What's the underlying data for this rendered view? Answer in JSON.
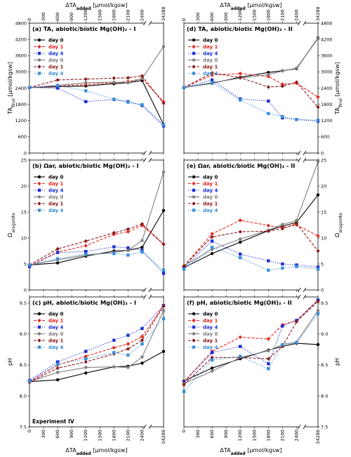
{
  "figure_label": "Experiment IV",
  "x_label": {
    "main": "ΔTA",
    "sub": "added",
    "unit": " [μmol/kgsw]"
  },
  "x_ticks": [
    "0",
    "300",
    "600",
    "900",
    "1200",
    "1500",
    "1800",
    "2100",
    "2400",
    "34288"
  ],
  "colors": {
    "black": "#000000",
    "red": "#e8251e",
    "blue": "#1c2fd6",
    "gray": "#7f7f7f",
    "darkred": "#8b1a1a",
    "lightblue": "#3b8ed8"
  },
  "legend": [
    "day 0",
    "day 1",
    "day 4",
    "day 0",
    "day 1",
    "day 4"
  ],
  "chart_data": [
    {
      "type": "line",
      "panel": "a",
      "title": "(a) TA, abiotic/biotic Mg(OH)₂ - I",
      "ylabel": "TA_final [μmol/kgsw]",
      "ylim": [
        0,
        4800
      ],
      "yticks": [
        0,
        600,
        1200,
        1800,
        2400,
        3000,
        3600,
        4200,
        4800
      ],
      "x": [
        0,
        600,
        1200,
        1800,
        2100,
        2400,
        34288
      ],
      "series": [
        {
          "name": "day 0",
          "values": [
            2420,
            2450,
            2480,
            2560,
            2600,
            2680,
            1050
          ]
        },
        {
          "name": "day 1",
          "values": [
            2420,
            2480,
            2530,
            2600,
            2640,
            2750,
            1900
          ]
        },
        {
          "name": "day 4",
          "values": [
            2420,
            2400,
            1900,
            1980,
            1900,
            1760,
            1000
          ]
        },
        {
          "name": "day 0",
          "values": [
            2420,
            2500,
            2600,
            2620,
            2600,
            2750,
            3940
          ]
        },
        {
          "name": "day 1",
          "values": [
            2420,
            2700,
            2730,
            2770,
            2780,
            2850,
            1840
          ]
        },
        {
          "name": "day 4",
          "values": [
            2420,
            2500,
            2300,
            1990,
            1880,
            1790,
            1040
          ]
        }
      ]
    },
    {
      "type": "line",
      "panel": "d",
      "title": "(d) TA, abiotic/biotic Mg(OH)₂ - II",
      "ylabel": "TA_final [μmol/kgsw]",
      "ylim": [
        0,
        4800
      ],
      "yticks": [
        0,
        600,
        1200,
        1800,
        2400,
        3000,
        3600,
        4200,
        4800
      ],
      "x": [
        0,
        600,
        1200,
        1800,
        2100,
        2400,
        34288
      ],
      "series": [
        {
          "name": "day 0",
          "values": [
            2420,
            2580,
            2800,
            2980,
            3040,
            3120,
            4250
          ]
        },
        {
          "name": "day 1",
          "values": [
            2420,
            2880,
            2940,
            2830,
            2540,
            2580,
            2070
          ]
        },
        {
          "name": "day 4",
          "values": [
            2420,
            2700,
            2000,
            1920,
            1300,
            1240,
            1180
          ]
        },
        {
          "name": "day 0",
          "values": [
            2420,
            2600,
            2770,
            2900,
            3030,
            3140,
            4230
          ]
        },
        {
          "name": "day 1",
          "values": [
            2420,
            2960,
            2790,
            2440,
            2470,
            2620,
            1700
          ]
        },
        {
          "name": "day 4",
          "values": [
            2420,
            2600,
            1960,
            1460,
            1350,
            1240,
            1210
          ]
        }
      ]
    },
    {
      "type": "line",
      "panel": "b",
      "title": "(b) Ω_ar, abiotic/biotic Mg(OH)₂ - I",
      "ylabel": "Ω_aragonite",
      "ylim": [
        0,
        25
      ],
      "yticks": [
        0,
        5,
        10,
        15,
        20,
        25
      ],
      "x": [
        0,
        600,
        1200,
        1800,
        2100,
        2400,
        34288
      ],
      "series": [
        {
          "name": "day 0",
          "values": [
            4.8,
            5.2,
            6.5,
            7.5,
            7.6,
            8.2,
            15.3
          ]
        },
        {
          "name": "day 1",
          "values": [
            4.6,
            7.3,
            8.5,
            10.7,
            11.2,
            12.4,
            8.8
          ]
        },
        {
          "name": "day 4",
          "values": [
            4.5,
            7.2,
            7.4,
            8.3,
            8.1,
            7.6,
            3.2
          ]
        },
        {
          "name": "day 0",
          "values": [
            4.8,
            5.8,
            6.7,
            7.2,
            7.6,
            9.5,
            22.7
          ]
        },
        {
          "name": "day 1",
          "values": [
            4.8,
            7.9,
            9.4,
            11.0,
            11.7,
            12.7,
            8.8
          ]
        },
        {
          "name": "day 4",
          "values": [
            4.8,
            6.0,
            6.9,
            7.0,
            6.7,
            7.3,
            3.8
          ]
        }
      ]
    },
    {
      "type": "line",
      "panel": "e",
      "title": "(e) Ω_ar, abiotic/biotic Mg(OH)₂ - II",
      "ylabel": "Ω_aragonite",
      "ylim": [
        0,
        25
      ],
      "yticks": [
        0,
        5,
        10,
        15,
        20,
        25
      ],
      "x": [
        0,
        600,
        1200,
        1800,
        2100,
        2400,
        34288
      ],
      "series": [
        {
          "name": "day 0",
          "values": [
            4.3,
            7.0,
            9.2,
            11.4,
            12.3,
            13.0,
            18.3
          ]
        },
        {
          "name": "day 1",
          "values": [
            4.6,
            10.8,
            13.4,
            12.4,
            12.0,
            12.5,
            10.4
          ]
        },
        {
          "name": "day 4",
          "values": [
            4.4,
            9.4,
            6.9,
            5.6,
            5.0,
            4.8,
            4.4
          ]
        },
        {
          "name": "day 0",
          "values": [
            4.6,
            7.8,
            9.8,
            11.5,
            12.6,
            13.4,
            24.7
          ]
        },
        {
          "name": "day 1",
          "values": [
            4.6,
            10.2,
            11.2,
            11.3,
            11.8,
            12.8,
            7.5
          ]
        },
        {
          "name": "day 4",
          "values": [
            4.0,
            8.2,
            6.2,
            3.8,
            4.2,
            4.5,
            4.0
          ]
        }
      ]
    },
    {
      "type": "line",
      "panel": "c",
      "title": "(c) pH, abiotic/biotic Mg(OH)₂ - I",
      "ylabel": "pH",
      "ylim": [
        7.5,
        9.6
      ],
      "yticks": [
        7.5,
        8.0,
        8.5,
        9.0,
        9.5
      ],
      "x": [
        0,
        600,
        1200,
        1800,
        2100,
        2400,
        34288
      ],
      "series": [
        {
          "name": "day 0",
          "values": [
            8.23,
            8.26,
            8.37,
            8.47,
            8.48,
            8.53,
            8.72
          ]
        },
        {
          "name": "day 1",
          "values": [
            8.23,
            8.5,
            8.64,
            8.78,
            8.84,
            8.96,
            9.46
          ]
        },
        {
          "name": "day 4",
          "values": [
            8.25,
            8.55,
            8.72,
            8.9,
            8.98,
            9.09,
            9.46
          ]
        },
        {
          "name": "day 0",
          "values": [
            8.23,
            8.38,
            8.46,
            8.47,
            8.46,
            8.63,
            9.38
          ]
        },
        {
          "name": "day 1",
          "values": [
            8.22,
            8.45,
            8.55,
            8.68,
            8.76,
            8.9,
            9.45
          ]
        },
        {
          "name": "day 4",
          "values": [
            8.24,
            8.51,
            8.6,
            8.7,
            8.66,
            8.84,
            9.25
          ]
        }
      ]
    },
    {
      "type": "line",
      "panel": "f",
      "title": "(f) pH, abiotic/biotic Mg(OH)₂ - II",
      "ylabel": "pH",
      "ylim": [
        7.5,
        9.6
      ],
      "yticks": [
        7.5,
        8.0,
        8.5,
        9.0,
        9.5
      ],
      "x": [
        0,
        600,
        1200,
        1800,
        2100,
        2400,
        34288
      ],
      "series": [
        {
          "name": "day 0",
          "values": [
            8.24,
            8.45,
            8.6,
            8.74,
            8.8,
            8.85,
            8.83
          ]
        },
        {
          "name": "day 1",
          "values": [
            8.23,
            8.72,
            8.95,
            8.92,
            9.15,
            9.22,
            9.55
          ]
        },
        {
          "name": "day 4",
          "values": [
            8.22,
            8.7,
            8.8,
            8.52,
            9.13,
            9.22,
            9.55
          ]
        },
        {
          "name": "day 0",
          "values": [
            8.2,
            8.4,
            8.62,
            8.73,
            8.83,
            8.87,
            9.38
          ]
        },
        {
          "name": "day 1",
          "values": [
            8.18,
            8.62,
            8.62,
            8.6,
            8.8,
            9.2,
            9.53
          ]
        },
        {
          "name": "day 4",
          "values": [
            8.07,
            8.58,
            8.64,
            8.44,
            8.83,
            8.86,
            9.33
          ]
        }
      ]
    }
  ]
}
